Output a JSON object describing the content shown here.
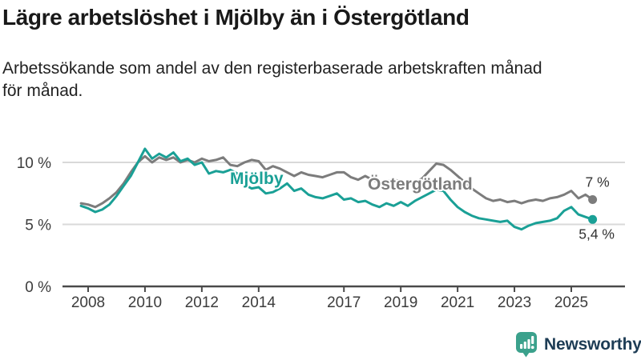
{
  "header": {
    "title": "Lägre arbetslöshet i Mjölby än i Östergötland",
    "subtitle_line1": "Arbetssökande som andel av den registerbaserade arbetskraften månad",
    "subtitle_line2": "för månad."
  },
  "branding": {
    "name": "Newsworthy",
    "icon": "newsworthy-bar-chart-bubble-icon",
    "text_color": "#1d3c55",
    "icon_color": "#3ba18c"
  },
  "chart_data": {
    "type": "line",
    "title": "Lägre arbetslöshet i Mjölby än i Östergötland",
    "subtitle": "Arbetssökande som andel av den registerbaserade arbetskraften månad för månad.",
    "unit": "%",
    "x_start": 2007.75,
    "x_step_years": 0.25,
    "xlim": [
      2007.5,
      2026.2
    ],
    "ylim": [
      0,
      11.8
    ],
    "grid": "horizontal",
    "legend_position": "inline-labels",
    "y_ticks": [
      {
        "value": 0,
        "label": "0 %"
      },
      {
        "value": 5,
        "label": "5 %"
      },
      {
        "value": 10,
        "label": "10 %"
      }
    ],
    "x_ticks": [
      2008,
      2010,
      2012,
      2014,
      2017,
      2019,
      2021,
      2023,
      2025
    ],
    "colors": {
      "grid": "#d9d9d9",
      "axis": "#4a4a4a"
    },
    "series": [
      {
        "id": "mjolby",
        "name": "Mjölby",
        "color": "#1aa096",
        "end_label": "5,4 %",
        "end_value": 5.4,
        "values": [
          6.5,
          6.3,
          6.0,
          6.2,
          6.6,
          7.3,
          8.1,
          8.9,
          10.0,
          11.1,
          10.3,
          10.7,
          10.4,
          10.8,
          10.1,
          10.3,
          9.8,
          10.0,
          9.1,
          9.3,
          9.2,
          9.4,
          9.1,
          8.2,
          7.9,
          8.0,
          7.5,
          7.6,
          7.9,
          8.3,
          7.7,
          7.9,
          7.4,
          7.2,
          7.1,
          7.3,
          7.5,
          7.0,
          7.1,
          6.8,
          6.9,
          6.6,
          6.4,
          6.7,
          6.5,
          6.8,
          6.5,
          6.9,
          7.2,
          7.5,
          7.8,
          7.7,
          7.0,
          6.4,
          6.0,
          5.7,
          5.5,
          5.4,
          5.3,
          5.2,
          5.3,
          4.8,
          4.6,
          4.9,
          5.1,
          5.2,
          5.3,
          5.5,
          6.1,
          6.4,
          5.8,
          5.6,
          5.4
        ]
      },
      {
        "id": "ostergotland",
        "name": "Östergötland",
        "color": "#7c7c7c",
        "end_label": "7 %",
        "end_value": 7.0,
        "values": [
          6.7,
          6.6,
          6.4,
          6.7,
          7.1,
          7.6,
          8.3,
          9.2,
          10.0,
          10.5,
          10.0,
          10.4,
          10.2,
          10.4,
          10.0,
          10.2,
          10.0,
          10.3,
          10.1,
          10.2,
          10.4,
          9.8,
          9.7,
          10.0,
          10.2,
          10.1,
          9.4,
          9.7,
          9.5,
          9.2,
          8.9,
          9.2,
          9.0,
          8.9,
          8.8,
          9.0,
          9.2,
          9.2,
          8.8,
          8.6,
          8.9,
          8.6,
          8.4,
          8.5,
          8.6,
          8.5,
          8.3,
          8.4,
          8.7,
          9.3,
          9.9,
          9.8,
          9.4,
          8.9,
          8.4,
          7.9,
          7.5,
          7.1,
          6.9,
          7.0,
          6.8,
          6.9,
          6.7,
          6.9,
          7.0,
          6.9,
          7.1,
          7.2,
          7.4,
          7.7,
          7.1,
          7.4,
          7.0
        ]
      }
    ]
  }
}
